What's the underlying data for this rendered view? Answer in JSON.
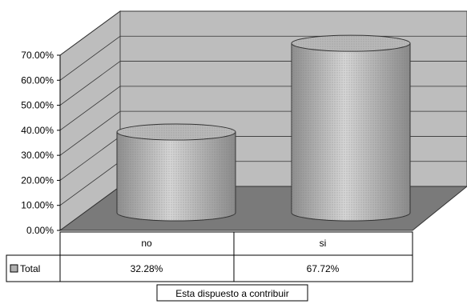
{
  "chart_data": {
    "type": "bar",
    "style": "3d-cylinder",
    "categories": [
      "no",
      "si"
    ],
    "series": [
      {
        "name": "Total",
        "values": [
          32.28,
          67.72
        ]
      }
    ],
    "value_labels": [
      "32.28%",
      "67.72%"
    ],
    "yticks": [
      "0.00%",
      "10.00%",
      "20.00%",
      "30.00%",
      "40.00%",
      "50.00%",
      "60.00%",
      "70.00%"
    ],
    "ylim": [
      0,
      70
    ],
    "grid": true,
    "legend": "data-table-left",
    "xlabel": "Esta dispuesto a contribuir",
    "colors": {
      "wall": "#bdbdbd",
      "floor": "#7a7a7a",
      "cylinder_light": "#d0d0d0",
      "cylinder_dark": "#8c8c8c",
      "legend_key": "#b0b0b0"
    }
  }
}
